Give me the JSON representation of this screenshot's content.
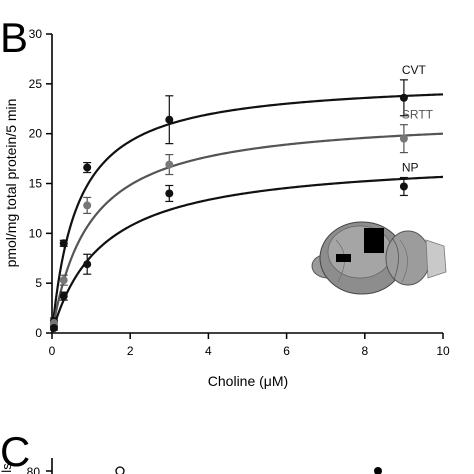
{
  "panels": {
    "b_letter": "B",
    "c_letter": "C"
  },
  "chart_data": {
    "type": "scatter",
    "title": "",
    "xlabel": "Choline (μM)",
    "ylabel": "pmol/mg total protein/5 min",
    "xlim": [
      0,
      10
    ],
    "ylim": [
      0,
      30
    ],
    "xticks": [
      "0",
      "2",
      "4",
      "6",
      "8",
      "10"
    ],
    "yticks": [
      "0",
      "5",
      "10",
      "15",
      "20",
      "25",
      "30"
    ],
    "grid": false,
    "legend": "inline labels at right end of curves",
    "fit": "Michaelis-Menten curve per series",
    "series": [
      {
        "name": "CVT",
        "color": "#111111",
        "marker_color": "#111111",
        "points": [
          {
            "x": 0.05,
            "y": 1.2,
            "err": 0.3
          },
          {
            "x": 0.3,
            "y": 9.0,
            "err": 0.3
          },
          {
            "x": 0.9,
            "y": 16.6,
            "err": 0.5
          },
          {
            "x": 3,
            "y": 21.4,
            "err": 2.4
          },
          {
            "x": 9,
            "y": 23.6,
            "err": 1.8
          }
        ],
        "fit_vmax": 25.5,
        "fit_km": 0.65
      },
      {
        "name": "SRTT",
        "color": "#555555",
        "marker_color": "#777777",
        "points": [
          {
            "x": 0.05,
            "y": 1.0,
            "err": 0.3
          },
          {
            "x": 0.3,
            "y": 5.3,
            "err": 0.5
          },
          {
            "x": 0.9,
            "y": 12.8,
            "err": 0.8
          },
          {
            "x": 3,
            "y": 16.9,
            "err": 1.0
          },
          {
            "x": 9,
            "y": 19.5,
            "err": 1.4
          }
        ],
        "fit_vmax": 21.9,
        "fit_km": 0.95
      },
      {
        "name": "NP",
        "color": "#111111",
        "marker_color": "#111111",
        "points": [
          {
            "x": 0.05,
            "y": 0.5,
            "err": 0.2
          },
          {
            "x": 0.3,
            "y": 3.7,
            "err": 0.4
          },
          {
            "x": 0.9,
            "y": 6.9,
            "err": 1.0
          },
          {
            "x": 3,
            "y": 14.0,
            "err": 0.8
          },
          {
            "x": 9,
            "y": 14.7,
            "err": 0.9
          }
        ],
        "fit_vmax": 17.7,
        "fit_km": 1.3
      }
    ]
  },
  "panel_c": {
    "ytick": "80",
    "ylabel_fragment": "ls"
  }
}
